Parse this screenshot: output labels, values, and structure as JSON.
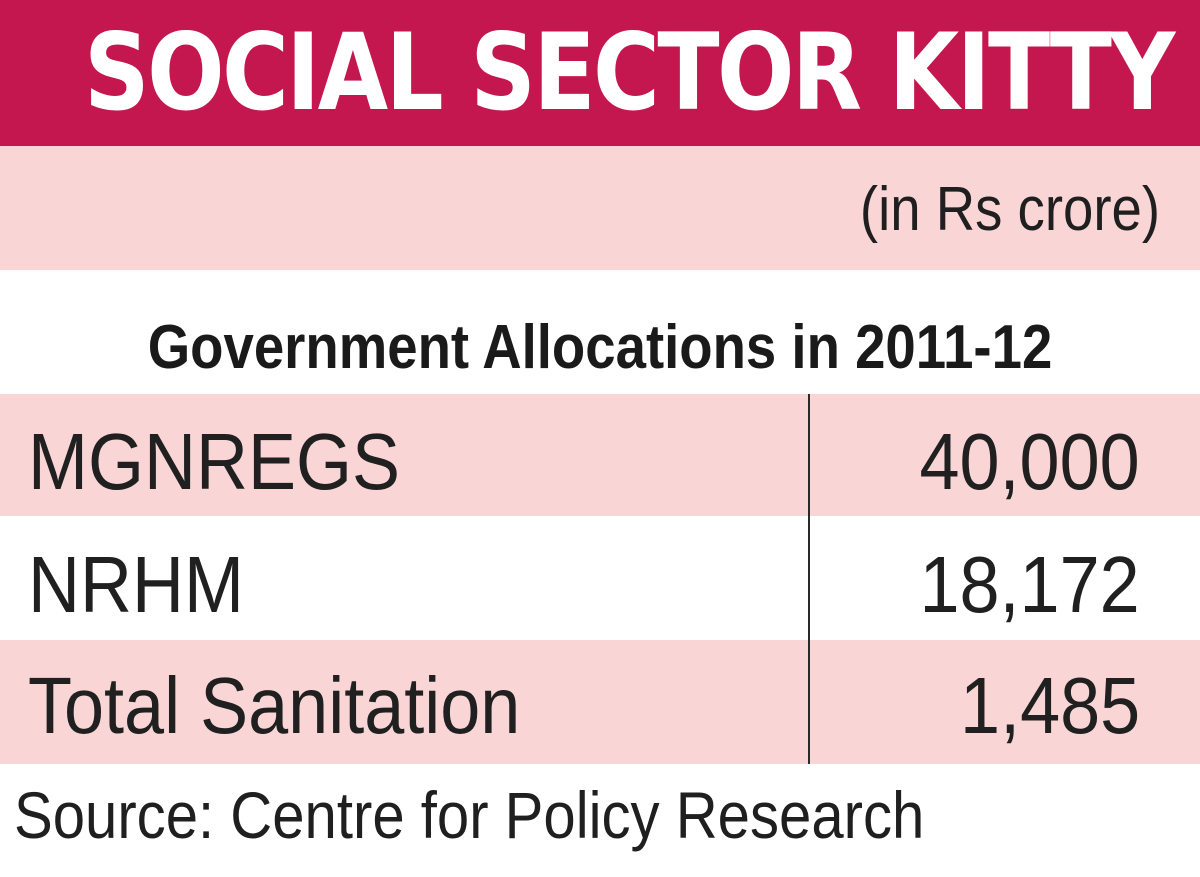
{
  "chart_data": {
    "type": "table",
    "title": "SOCIAL SECTOR KITTY",
    "unit_note": "(in Rs crore)",
    "subtitle": "Government Allocations in 2011-12",
    "rows": [
      {
        "label": "MGNREGS",
        "value": "40,000"
      },
      {
        "label": "NRHM",
        "value": "18,172"
      },
      {
        "label": "Total Sanitation",
        "value": "1,485"
      }
    ],
    "values": [
      40000,
      18172,
      1485
    ],
    "source": "Source: Centre for Policy Research"
  },
  "colors": {
    "title_band": "#c4164f",
    "light_band": "#f9d5d6",
    "text": "#1c1c1c"
  }
}
